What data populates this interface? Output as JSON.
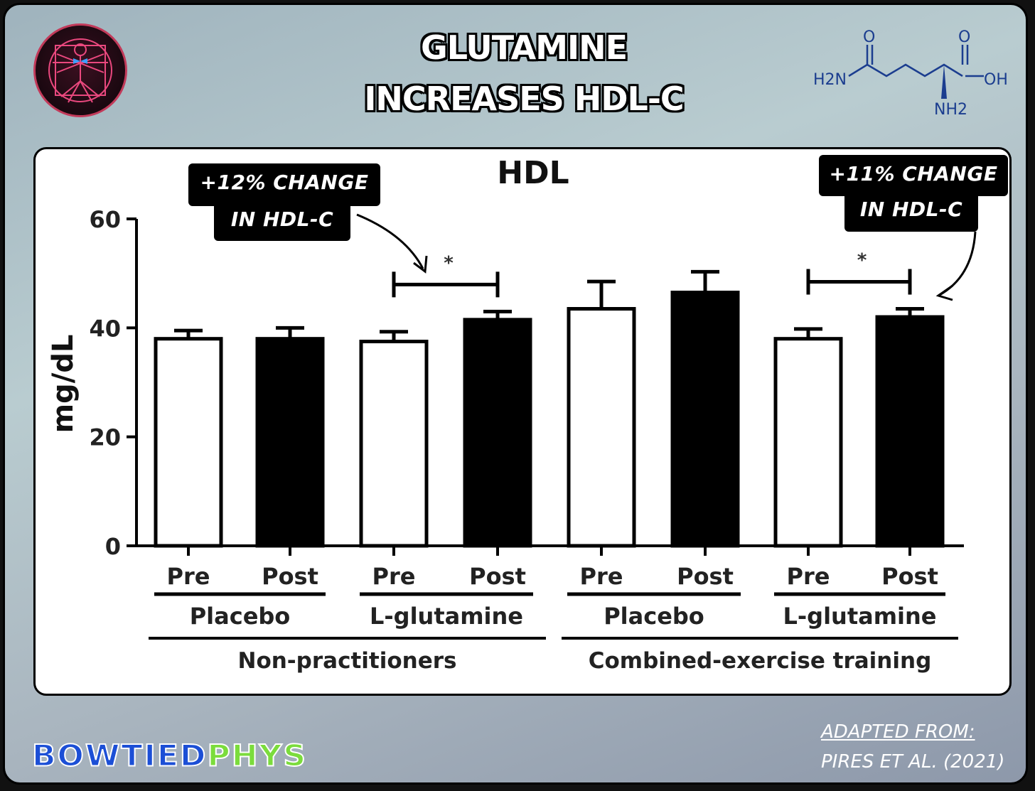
{
  "header": {
    "title_line1": "GLUTAMINE",
    "title_line2": "INCREASES HDL-C"
  },
  "molecule": {
    "labels": [
      "O",
      "O",
      "H2N",
      "OH",
      "NH2"
    ]
  },
  "callouts": {
    "left_line1": "+12% CHANGE",
    "left_line2": "IN HDL-C",
    "right_line1": "+11% CHANGE",
    "right_line2": "IN HDL-C"
  },
  "footer": {
    "brand_part1": "BOWTIED",
    "brand_part2": "PHYS",
    "credit_line1": "ADAPTED FROM:",
    "credit_line2": "PIRES ET AL. (2021)"
  },
  "colors": {
    "brand_blue": "#1c4fd6",
    "brand_green": "#7bdc3c",
    "molecule_blue": "#1b3d8f"
  },
  "chart_data": {
    "type": "bar",
    "title": "HDL",
    "ylabel": "mg/dL",
    "ylim": [
      0,
      60
    ],
    "yticks": [
      0,
      20,
      40,
      60
    ],
    "time_labels": [
      "Pre",
      "Post",
      "Pre",
      "Post",
      "Pre",
      "Post",
      "Pre",
      "Post"
    ],
    "groups": [
      "Placebo",
      "L-glutamine",
      "Placebo",
      "L-glutamine"
    ],
    "populations": [
      "Non-practitioners",
      "Combined-exercise training"
    ],
    "bars": [
      {
        "value": 38.0,
        "error": 1.5,
        "fill": "white"
      },
      {
        "value": 38.0,
        "error": 2.0,
        "fill": "black"
      },
      {
        "value": 37.5,
        "error": 1.8,
        "fill": "white"
      },
      {
        "value": 41.5,
        "error": 1.5,
        "fill": "black"
      },
      {
        "value": 43.5,
        "error": 5.0,
        "fill": "white"
      },
      {
        "value": 46.5,
        "error": 3.8,
        "fill": "black"
      },
      {
        "value": 38.0,
        "error": 1.8,
        "fill": "white"
      },
      {
        "value": 42.0,
        "error": 1.5,
        "fill": "black"
      }
    ],
    "significance": [
      {
        "from": 2,
        "to": 3,
        "marker": "*"
      },
      {
        "from": 6,
        "to": 7,
        "marker": "*"
      }
    ]
  }
}
